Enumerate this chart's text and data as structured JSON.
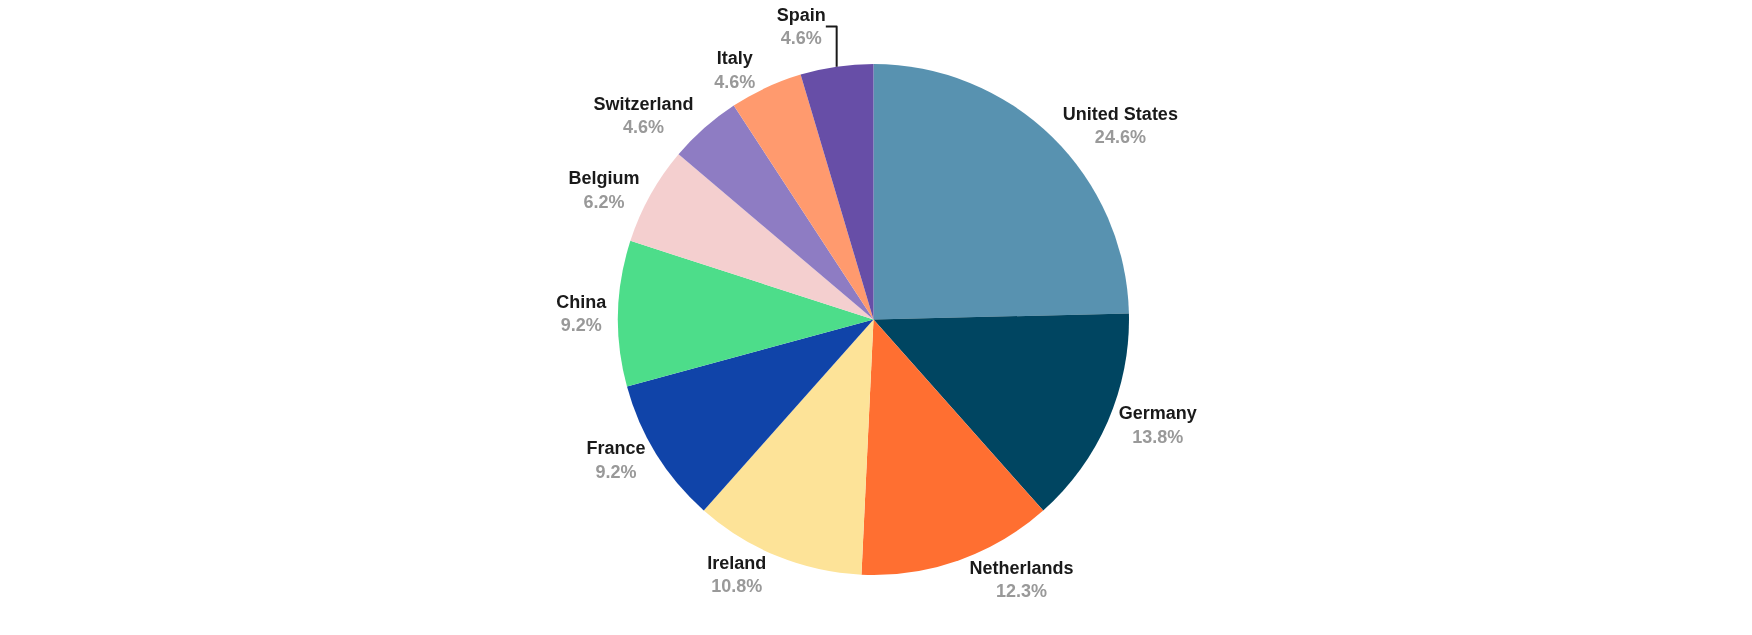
{
  "chart_data": {
    "type": "pie",
    "categories": [
      "United States",
      "Germany",
      "Netherlands",
      "Ireland",
      "France",
      "China",
      "Belgium",
      "Switzerland",
      "Italy",
      "Spain"
    ],
    "values": [
      24.6,
      13.8,
      12.3,
      10.8,
      9.2,
      9.2,
      6.2,
      4.6,
      4.6,
      4.6
    ],
    "value_labels": [
      "24.6%",
      "13.8%",
      "12.3%",
      "10.8%",
      "9.2%",
      "9.2%",
      "6.2%",
      "4.6%",
      "4.6%",
      "4.6%"
    ],
    "colors": [
      "#5892b0",
      "#004561",
      "#ff6f31",
      "#fde398",
      "#1044a9",
      "#4ddd8a",
      "#f4cfcf",
      "#8e7cc3",
      "#ff9a6e",
      "#674ea7"
    ],
    "legend": false
  }
}
